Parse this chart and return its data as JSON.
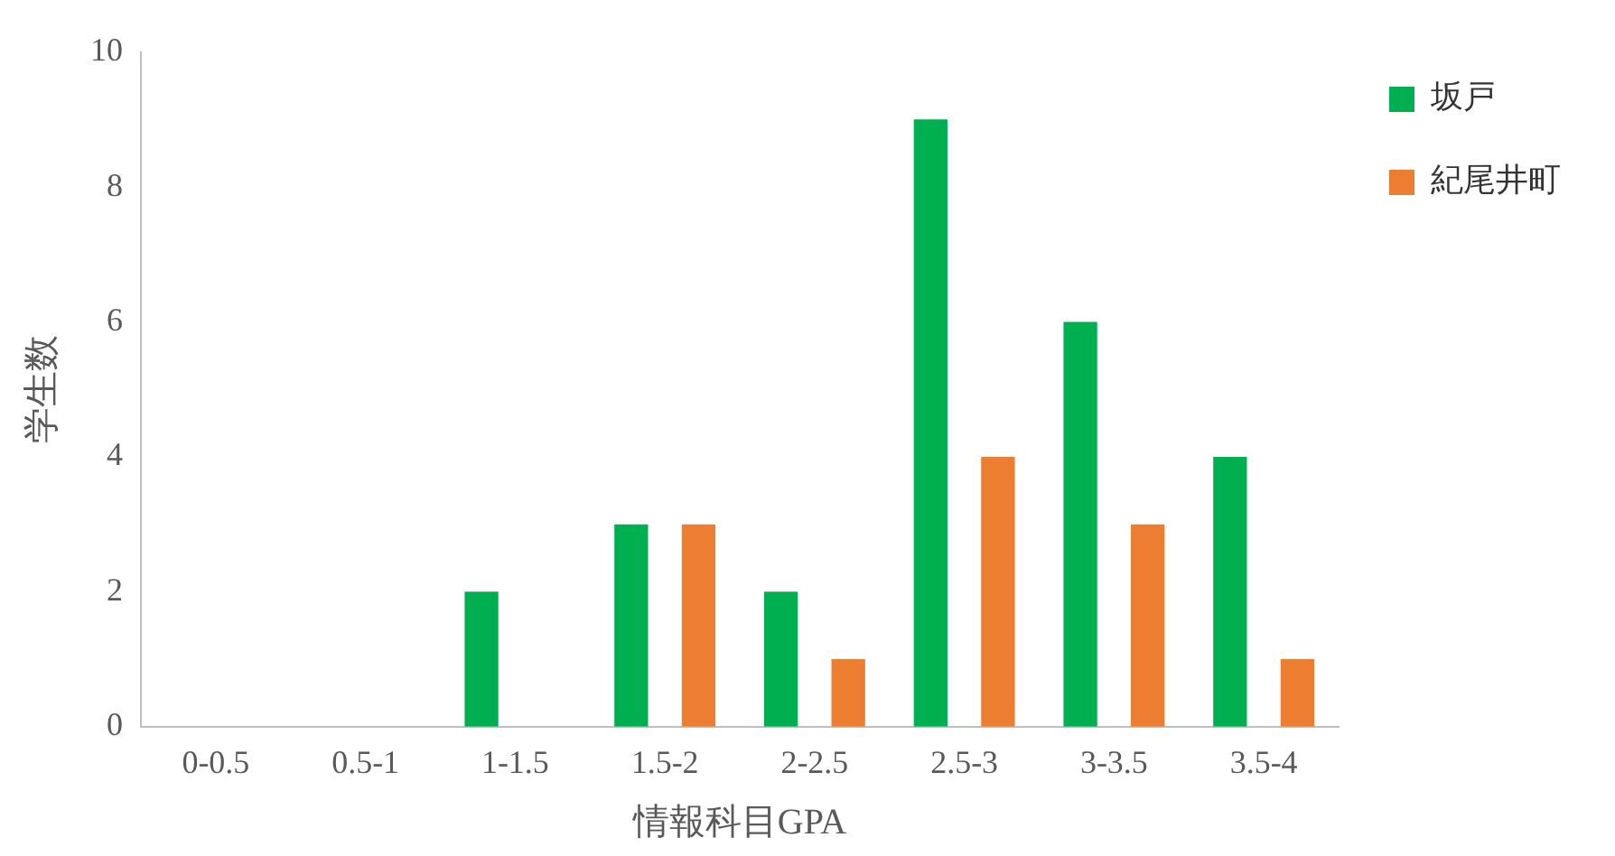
{
  "chart_data": {
    "type": "bar",
    "xlabel": "情報科目GPA",
    "ylabel": "学生数",
    "categories": [
      "0-0.5",
      "0.5-1",
      "1-1.5",
      "1.5-2",
      "2-2.5",
      "2.5-3",
      "3-3.5",
      "3.5-4"
    ],
    "series": [
      {
        "name": "坂戸",
        "color": "#00b050",
        "values": [
          0,
          0,
          2,
          3,
          2,
          9,
          6,
          4
        ]
      },
      {
        "name": "紀尾井町",
        "color": "#ed7d31",
        "values": [
          0,
          0,
          0,
          3,
          1,
          4,
          3,
          1
        ]
      }
    ],
    "ylim": [
      0,
      10
    ],
    "yticks": [
      0,
      2,
      4,
      6,
      8,
      10
    ],
    "grid": false,
    "legend": "top right"
  }
}
